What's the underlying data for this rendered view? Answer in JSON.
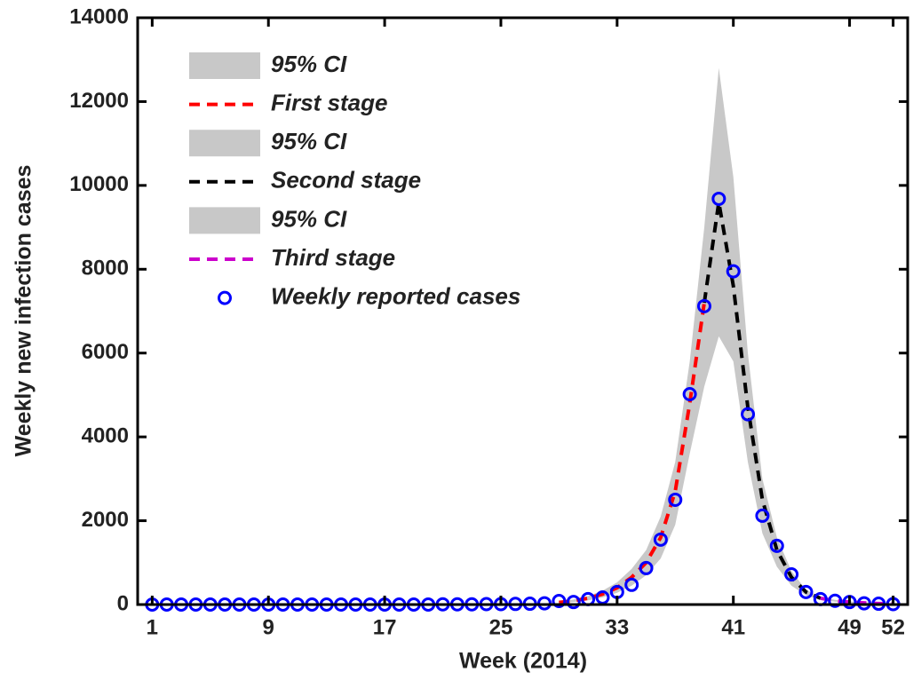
{
  "chart_data": {
    "type": "line",
    "xlabel": "Week (2014)",
    "ylabel": "Weekly new infection cases",
    "xlim": [
      0,
      53
    ],
    "ylim": [
      0,
      14000
    ],
    "xticks": [
      1,
      9,
      17,
      25,
      33,
      41,
      49,
      52
    ],
    "yticks": [
      0,
      2000,
      4000,
      6000,
      8000,
      10000,
      12000,
      14000
    ],
    "legend": "upper-left",
    "series": [
      {
        "name": "95% CI",
        "type": "band",
        "color": "#c8c8c8",
        "x": [
          29,
          30,
          31,
          32,
          33,
          34,
          35,
          36,
          37,
          38,
          39
        ],
        "lower": [
          30,
          60,
          100,
          170,
          280,
          450,
          700,
          1100,
          1900,
          3600,
          5200
        ],
        "upper": [
          70,
          120,
          200,
          330,
          530,
          850,
          1300,
          2100,
          3400,
          5800,
          9000
        ]
      },
      {
        "name": "First stage",
        "type": "line",
        "color": "#ff0000",
        "x": [
          29,
          30,
          31,
          32,
          33,
          34,
          35,
          36,
          37,
          38,
          39
        ],
        "values": [
          50,
          90,
          150,
          250,
          400,
          650,
          1000,
          1600,
          2700,
          4800,
          7200
        ]
      },
      {
        "name": "95% CI",
        "type": "band",
        "color": "#c8c8c8",
        "x": [
          39,
          40,
          41,
          42,
          43,
          44,
          45,
          46,
          47
        ],
        "lower": [
          5200,
          6400,
          5800,
          3400,
          1700,
          900,
          450,
          220,
          110
        ],
        "upper": [
          9000,
          12800,
          10200,
          6000,
          3000,
          1600,
          800,
          350,
          180
        ]
      },
      {
        "name": "Second stage",
        "type": "line",
        "color": "#000000",
        "x": [
          39,
          40,
          41,
          42,
          43,
          44,
          45,
          46,
          47
        ],
        "values": [
          7200,
          9600,
          7600,
          4700,
          2500,
          1300,
          650,
          300,
          150
        ]
      },
      {
        "name": "95% CI",
        "type": "band",
        "color": "#c8c8c8",
        "x": [
          47,
          48,
          49,
          50,
          51,
          52
        ],
        "lower": [
          110,
          70,
          45,
          30,
          18,
          10
        ],
        "upper": [
          180,
          110,
          75,
          50,
          30,
          20
        ]
      },
      {
        "name": "Third stage",
        "type": "line",
        "color": "#cc00cc",
        "x": [
          47,
          48,
          49,
          50,
          51,
          52
        ],
        "values": [
          150,
          90,
          60,
          40,
          25,
          15
        ]
      },
      {
        "name": "Weekly reported cases",
        "type": "scatter",
        "color": "#0000ff",
        "x": [
          1,
          2,
          3,
          4,
          5,
          6,
          7,
          8,
          9,
          10,
          11,
          12,
          13,
          14,
          15,
          16,
          17,
          18,
          19,
          20,
          21,
          22,
          23,
          24,
          25,
          26,
          27,
          28,
          29,
          30,
          31,
          32,
          33,
          34,
          35,
          36,
          37,
          38,
          39,
          40,
          41,
          42,
          43,
          44,
          45,
          46,
          47,
          48,
          49,
          50,
          51,
          52
        ],
        "values": [
          0,
          0,
          0,
          0,
          0,
          0,
          0,
          0,
          0,
          0,
          0,
          0,
          0,
          0,
          0,
          0,
          0,
          0,
          0,
          0,
          5,
          5,
          5,
          10,
          10,
          15,
          20,
          30,
          85,
          60,
          130,
          170,
          300,
          470,
          870,
          1550,
          2500,
          5020,
          7120,
          9680,
          7950,
          4540,
          2120,
          1400,
          720,
          300,
          130,
          90,
          60,
          30,
          20,
          10
        ]
      }
    ]
  }
}
